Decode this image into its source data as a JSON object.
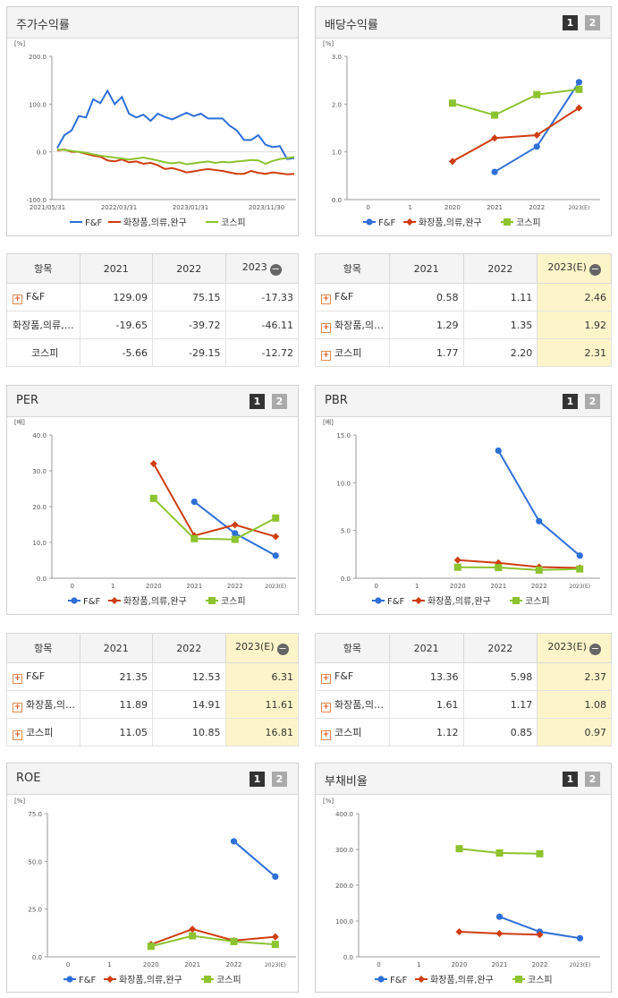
{
  "colors": {
    "ff": "#2e6fd8",
    "cosmetics": "#cf3d10",
    "kospi": "#8cc32e"
  },
  "legend": [
    "F&F",
    "화장품,의류,완구",
    "코스피"
  ],
  "button_labels": [
    "1",
    "2"
  ],
  "chart_data": [
    {
      "id": "stock",
      "title": "주가수익률",
      "type": "line",
      "unit": "[%]",
      "ylim": [
        -100,
        200
      ],
      "yticks": [
        "200.0",
        "100.0",
        "0.0",
        "-100.0"
      ],
      "ytick_values": [
        200,
        100,
        0,
        -100
      ],
      "xticks": [
        "2021/05/31",
        "2022/03/31",
        "2023/01/31",
        "2023/11/30"
      ],
      "series": [
        {
          "name": "F&F",
          "values": [
            8,
            35,
            45,
            75,
            72,
            110,
            102,
            128,
            100,
            115,
            80,
            72,
            78,
            65,
            80,
            73,
            68,
            75,
            82,
            75,
            80,
            70,
            70,
            70,
            55,
            45,
            25,
            25,
            35,
            15,
            10,
            12,
            -15,
            -13
          ]
        },
        {
          "name": "화장품,의류,완구",
          "values": [
            3,
            5,
            0,
            0,
            -4,
            -8,
            -10,
            -18,
            -20,
            -16,
            -22,
            -20,
            -25,
            -23,
            -28,
            -36,
            -34,
            -38,
            -43,
            -41,
            -38,
            -36,
            -38,
            -40,
            -43,
            -46,
            -46,
            -40,
            -44,
            -46,
            -43,
            -45,
            -47,
            -46
          ]
        },
        {
          "name": "코스피",
          "values": [
            5,
            4,
            2,
            0,
            -2,
            -5,
            -8,
            -10,
            -12,
            -14,
            -16,
            -14,
            -12,
            -15,
            -18,
            -22,
            -24,
            -22,
            -26,
            -24,
            -22,
            -20,
            -23,
            -21,
            -22,
            -20,
            -19,
            -17,
            -18,
            -25,
            -19,
            -15,
            -13,
            -11
          ]
        }
      ]
    },
    {
      "id": "dividend",
      "title": "배당수익률",
      "type": "line",
      "unit": "[%]",
      "ylim": [
        0,
        3
      ],
      "yticks": [
        "3.0",
        "2.0",
        "1.0",
        "0.0"
      ],
      "ytick_values": [
        3,
        2,
        1,
        0
      ],
      "categories": [
        "0",
        "1",
        "2020",
        "2021",
        "2022",
        "2023(E)"
      ],
      "series": [
        {
          "name": "F&F",
          "values": [
            null,
            null,
            null,
            0.58,
            1.11,
            2.46
          ]
        },
        {
          "name": "화장품,의류,완구",
          "values": [
            null,
            null,
            0.8,
            1.29,
            1.35,
            1.92
          ]
        },
        {
          "name": "코스피",
          "values": [
            null,
            null,
            2.02,
            1.77,
            2.2,
            2.31
          ]
        }
      ]
    },
    {
      "id": "per",
      "title": "PER",
      "type": "line",
      "unit": "[배]",
      "ylim": [
        0,
        40
      ],
      "yticks": [
        "40.0",
        "30.0",
        "20.0",
        "10.0",
        "0.0"
      ],
      "ytick_values": [
        40,
        30,
        20,
        10,
        0
      ],
      "categories": [
        "0",
        "1",
        "2020",
        "2021",
        "2022",
        "2023(E)"
      ],
      "series": [
        {
          "name": "F&F",
          "values": [
            null,
            null,
            null,
            21.35,
            12.53,
            6.31
          ]
        },
        {
          "name": "화장품,의류,완구",
          "values": [
            null,
            null,
            32.0,
            11.89,
            14.91,
            11.61
          ]
        },
        {
          "name": "코스피",
          "values": [
            null,
            null,
            22.3,
            11.05,
            10.85,
            16.81
          ]
        }
      ]
    },
    {
      "id": "pbr",
      "title": "PBR",
      "type": "line",
      "unit": "[배]",
      "ylim": [
        0,
        15
      ],
      "yticks": [
        "15.0",
        "10.0",
        "5.0",
        "0.0"
      ],
      "ytick_values": [
        15,
        10,
        5,
        0
      ],
      "categories": [
        "0",
        "1",
        "2020",
        "2021",
        "2022",
        "2023(E)"
      ],
      "series": [
        {
          "name": "F&F",
          "values": [
            null,
            null,
            null,
            13.36,
            5.98,
            2.37
          ]
        },
        {
          "name": "화장품,의류,완구",
          "values": [
            null,
            null,
            1.9,
            1.61,
            1.17,
            1.08
          ]
        },
        {
          "name": "코스피",
          "values": [
            null,
            null,
            1.15,
            1.12,
            0.85,
            0.97
          ]
        }
      ]
    },
    {
      "id": "roe",
      "title": "ROE",
      "type": "line",
      "unit": "[%]",
      "ylim": [
        0,
        75
      ],
      "yticks": [
        "75.0",
        "50.0",
        "25.0",
        "0.0"
      ],
      "ytick_values": [
        75,
        50,
        25,
        0
      ],
      "categories": [
        "0",
        "1",
        "2020",
        "2021",
        "2022",
        "2023(E)"
      ],
      "series": [
        {
          "name": "F&F",
          "values": [
            null,
            null,
            null,
            null,
            60.5,
            42.0
          ]
        },
        {
          "name": "화장품,의류,완구",
          "values": [
            null,
            null,
            6.5,
            14.5,
            8.5,
            10.5
          ]
        },
        {
          "name": "코스피",
          "values": [
            null,
            null,
            5.5,
            11.0,
            8.0,
            6.5
          ]
        }
      ]
    },
    {
      "id": "debt",
      "title": "부채비율",
      "type": "line",
      "unit": "[%]",
      "ylim": [
        0,
        400
      ],
      "yticks": [
        "400.0",
        "300.0",
        "200.0",
        "100.0",
        "0.0"
      ],
      "ytick_values": [
        400,
        300,
        200,
        100,
        0
      ],
      "categories": [
        "0",
        "1",
        "2020",
        "2021",
        "2022",
        "2023(E)"
      ],
      "series": [
        {
          "name": "F&F",
          "values": [
            null,
            null,
            null,
            112,
            70,
            52
          ]
        },
        {
          "name": "화장품,의류,완구",
          "values": [
            null,
            null,
            70,
            65,
            62,
            null
          ]
        },
        {
          "name": "코스피",
          "values": [
            null,
            null,
            302,
            290,
            288,
            null
          ]
        }
      ]
    }
  ],
  "tables": [
    {
      "id": "stock",
      "headers": [
        "항목",
        "2021",
        "2022",
        "2023"
      ],
      "rows": [
        {
          "name": "F&F",
          "plus": true,
          "v1": "129.09",
          "v2": "75.15",
          "v3": "-17.33"
        },
        {
          "name": "화장품,의류,완구",
          "plus": false,
          "v1": "-19.65",
          "v2": "-39.72",
          "v3": "-46.11"
        },
        {
          "name": "코스피",
          "plus": false,
          "v1": "-5.66",
          "v2": "-29.15",
          "v3": "-12.72"
        }
      ]
    },
    {
      "id": "dividend",
      "headers": [
        "항목",
        "2021",
        "2022",
        "2023(E)"
      ],
      "rows": [
        {
          "name": "F&F",
          "plus": true,
          "v1": "0.58",
          "v2": "1.11",
          "v3": "2.46"
        },
        {
          "name": "화장품,의류,완구",
          "plus": true,
          "v1": "1.29",
          "v2": "1.35",
          "v3": "1.92"
        },
        {
          "name": "코스피",
          "plus": true,
          "v1": "1.77",
          "v2": "2.20",
          "v3": "2.31"
        }
      ]
    },
    {
      "id": "per",
      "headers": [
        "항목",
        "2021",
        "2022",
        "2023(E)"
      ],
      "rows": [
        {
          "name": "F&F",
          "plus": true,
          "v1": "21.35",
          "v2": "12.53",
          "v3": "6.31"
        },
        {
          "name": "화장품,의류,완구",
          "plus": true,
          "v1": "11.89",
          "v2": "14.91",
          "v3": "11.61"
        },
        {
          "name": "코스피",
          "plus": true,
          "v1": "11.05",
          "v2": "10.85",
          "v3": "16.81"
        }
      ]
    },
    {
      "id": "pbr",
      "headers": [
        "항목",
        "2021",
        "2022",
        "2023(E)"
      ],
      "rows": [
        {
          "name": "F&F",
          "plus": true,
          "v1": "13.36",
          "v2": "5.98",
          "v3": "2.37"
        },
        {
          "name": "화장품,의류,완구",
          "plus": true,
          "v1": "1.61",
          "v2": "1.17",
          "v3": "1.08"
        },
        {
          "name": "코스피",
          "plus": true,
          "v1": "1.12",
          "v2": "0.85",
          "v3": "0.97"
        }
      ]
    }
  ]
}
